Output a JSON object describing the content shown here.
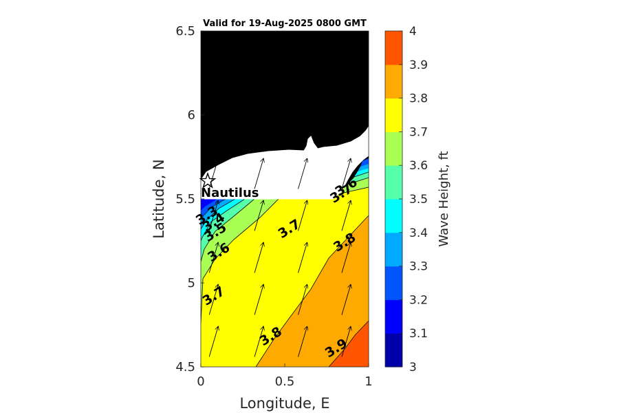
{
  "chart_data": {
    "type": "heatmap",
    "title": "Valid for 19-Aug-2025 0800 GMT",
    "xlabel": "Longitude, E",
    "ylabel": "Latitude, N",
    "xlim": [
      0,
      1
    ],
    "ylim": [
      4.5,
      6.5
    ],
    "xticks": [
      "0",
      "0.5",
      "1"
    ],
    "yticks": [
      "4.5",
      "5",
      "5.5",
      "6",
      "6.5"
    ],
    "colorbar": {
      "label": "Wave Height, ft",
      "range": [
        3,
        4
      ],
      "levels": [
        3,
        3.1,
        3.2,
        3.3,
        3.4,
        3.5,
        3.6,
        3.7,
        3.8,
        3.9,
        4
      ],
      "ticks": [
        "3",
        "3.1",
        "3.2",
        "3.3",
        "3.4",
        "3.5",
        "3.6",
        "3.7",
        "3.8",
        "3.9",
        "4"
      ],
      "colors": [
        "#0000a8",
        "#0000ff",
        "#0055ff",
        "#00aaff",
        "#00ffff",
        "#55ffaa",
        "#aaff55",
        "#ffff00",
        "#ffaa00",
        "#ff5500"
      ]
    },
    "contour_labels": [
      {
        "text": "3.3",
        "x": 0.05,
        "y": 5.38
      },
      {
        "text": "3.4",
        "x": 0.09,
        "y": 5.34
      },
      {
        "text": "3.5",
        "x": 0.1,
        "y": 5.28
      },
      {
        "text": "3.6",
        "x": 0.12,
        "y": 5.16
      },
      {
        "text": "3.7",
        "x": 0.09,
        "y": 4.9
      },
      {
        "text": "3.7",
        "x": 0.54,
        "y": 5.3
      },
      {
        "text": "3.8",
        "x": 0.87,
        "y": 5.22
      },
      {
        "text": "3.8",
        "x": 0.43,
        "y": 4.66
      },
      {
        "text": "3.9",
        "x": 0.82,
        "y": 4.59
      },
      {
        "text": "3.6",
        "x": 0.88,
        "y": 5.55
      },
      {
        "text": "3.7",
        "x": 0.85,
        "y": 5.51
      }
    ],
    "location": {
      "name": "Nautilus",
      "lon": 0.04,
      "lat": 5.6
    },
    "wave_direction_arrows": "north-northeast",
    "land_color": "#ffffff",
    "no_data_color": "#000000"
  }
}
